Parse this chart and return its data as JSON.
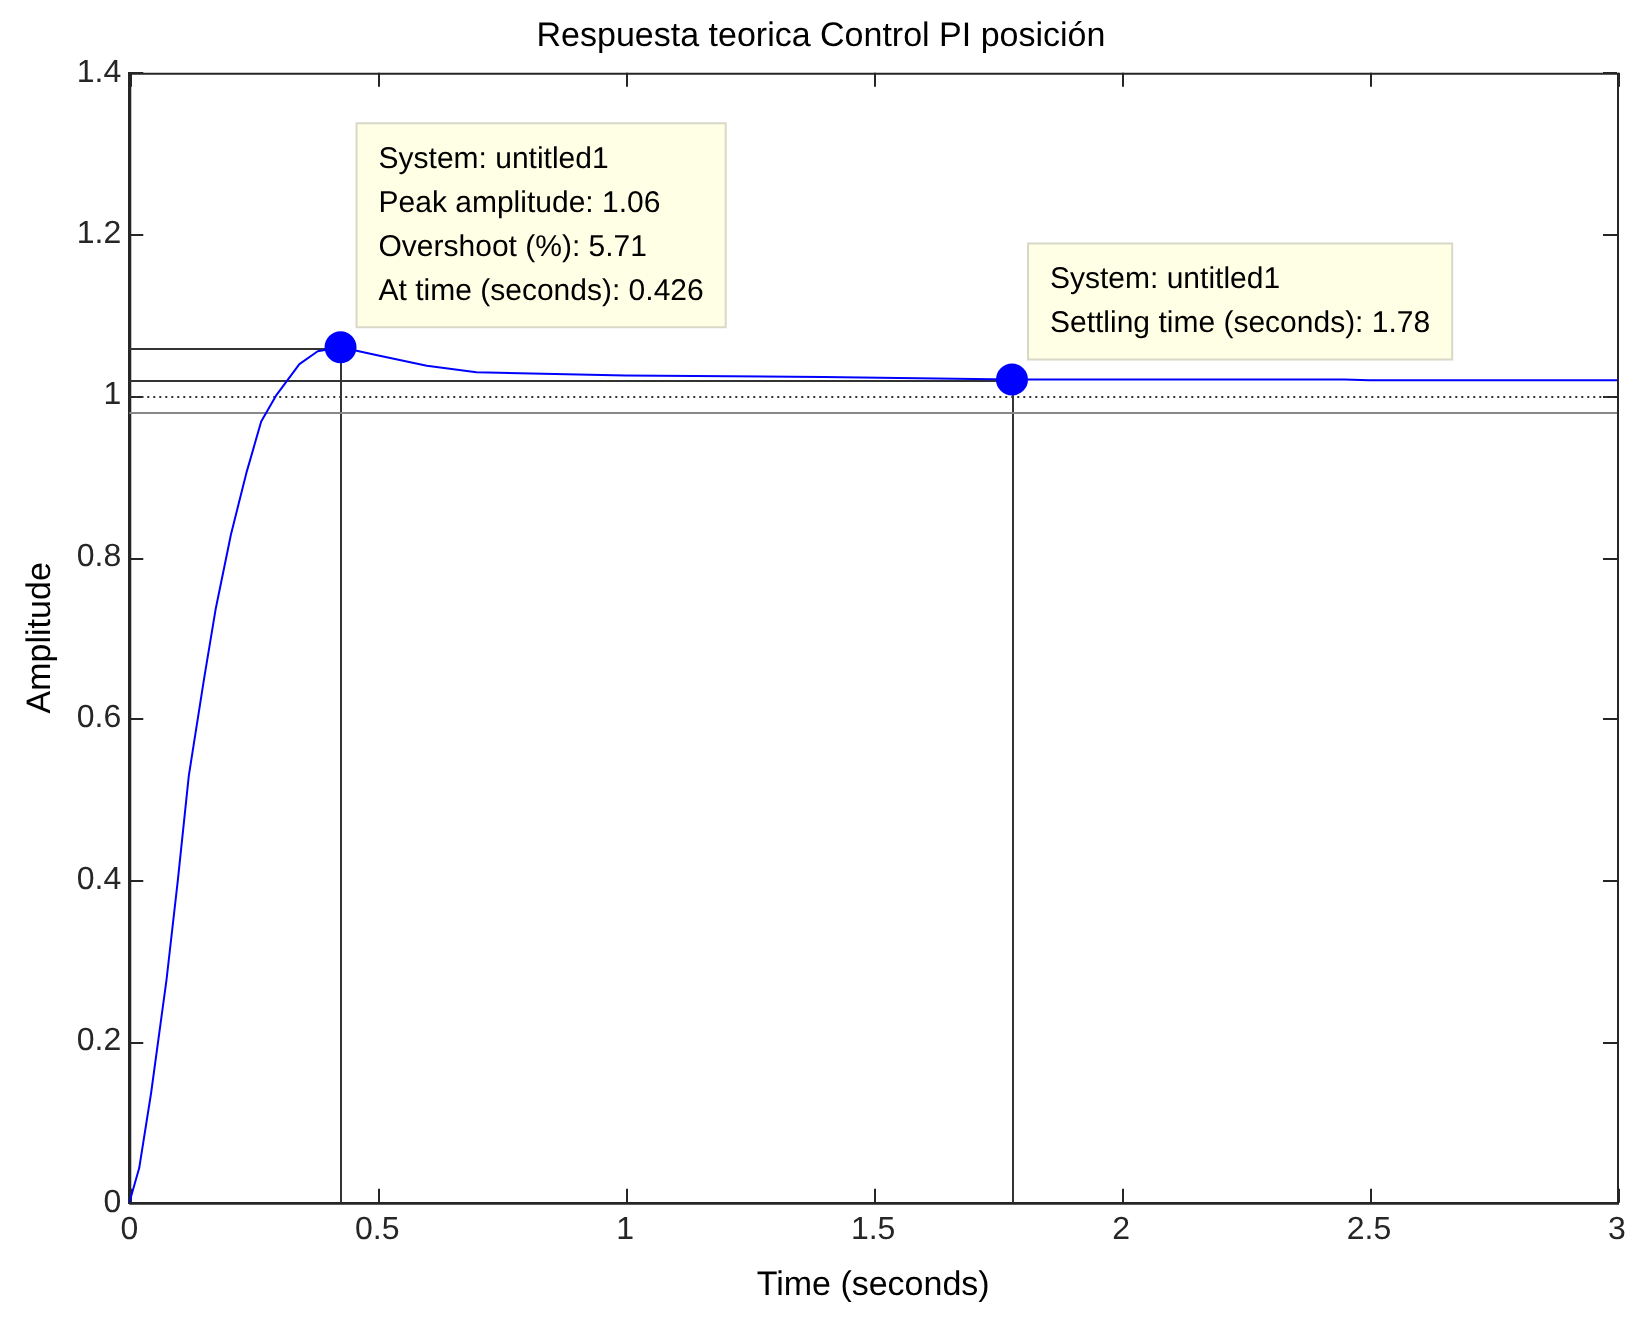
{
  "chart_data": {
    "type": "line",
    "title": "Respuesta teorica Control PI posición",
    "xlabel": "Time (seconds)",
    "ylabel": "Amplitude",
    "xlim": [
      0,
      3
    ],
    "xticks": [
      0,
      0.5,
      1,
      1.5,
      2,
      2.5,
      3
    ],
    "ylim": [
      0,
      1.4
    ],
    "yticks": [
      0,
      0.2,
      0.4,
      0.6,
      0.8,
      1,
      1.2,
      1.4
    ],
    "grid": false,
    "legend": false,
    "series": [
      {
        "color": "#0000ff",
        "marker": "none",
        "x": [
          0,
          0.02,
          0.044,
          0.075,
          0.098,
          0.12,
          0.151,
          0.174,
          0.205,
          0.236,
          0.266,
          0.297,
          0.343,
          0.38,
          0.426,
          0.5,
          0.6,
          0.7,
          1.0,
          1.4,
          1.78,
          2.45,
          2.5,
          3
        ],
        "values": [
          0,
          0.043,
          0.136,
          0.276,
          0.4,
          0.529,
          0.65,
          0.735,
          0.828,
          0.904,
          0.968,
          1.001,
          1.039,
          1.055,
          1.06,
          1.05,
          1.037,
          1.029,
          1.025,
          1.023,
          1.02,
          1.02,
          1.019,
          1.019
        ]
      },
      {
        "type": "scatter",
        "color": "#0000ff",
        "marker": "circle",
        "x": [
          0.426,
          1.78
        ],
        "values": [
          1.06,
          1.02
        ]
      }
    ],
    "ref_lines": [
      {
        "axis": "x",
        "value": 0.426,
        "color": "#333333",
        "line_style": "solid"
      },
      {
        "axis": "x",
        "value": 1.78,
        "color": "#333333",
        "line_style": "solid"
      },
      {
        "axis": "y",
        "value": 1.06,
        "color": "#333333",
        "line_style": "solid"
      },
      {
        "axis": "y",
        "value": 1.02,
        "color": "#333333",
        "line_style": "solid"
      },
      {
        "axis": "y",
        "value": 1.0,
        "color": "#333333",
        "line_style": "dotted"
      },
      {
        "axis": "y",
        "value": 0.98,
        "color": "#888888",
        "line_style": "solid"
      }
    ],
    "annotations": [
      {
        "text": "System: untitled1\nPeak amplitude: 1.06\nOvershoot (%): 5.71\nAt time (seconds): 0.426",
        "x": 0.426,
        "y": 1.06
      },
      {
        "text": "System: untitled1\nSettling time (seconds): 1.78",
        "x": 1.78,
        "y": 1.02
      }
    ]
  }
}
